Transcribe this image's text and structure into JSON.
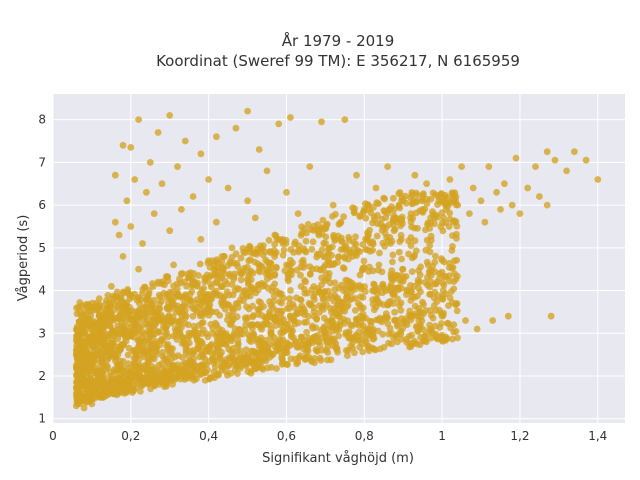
{
  "chart_data": {
    "type": "scatter",
    "title_lines": [
      "År 1979 - 2019",
      "Koordinat (Sweref 99 TM): E 356217, N 6165959"
    ],
    "xlabel": "Signifikant våghöjd (m)",
    "ylabel": "Vågperiod (s)",
    "xlim": [
      0,
      1.47
    ],
    "ylim": [
      0.9,
      8.6
    ],
    "x_ticks": [
      0,
      0.2,
      0.4,
      0.6,
      0.8,
      1,
      1.2,
      1.4
    ],
    "x_tick_labels": [
      "0",
      "0,2",
      "0,4",
      "0,6",
      "0,8",
      "1",
      "1,2",
      "1,4"
    ],
    "y_ticks": [
      1,
      2,
      3,
      4,
      5,
      6,
      7,
      8
    ],
    "y_tick_labels": [
      "1",
      "2",
      "3",
      "4",
      "5",
      "6",
      "7",
      "8"
    ],
    "grid": true,
    "marker_color": "#d4a321",
    "plot_background": "#e8e8f1",
    "points": [
      [
        0.06,
        1.3
      ],
      [
        0.07,
        1.45
      ],
      [
        0.08,
        1.25
      ],
      [
        0.09,
        1.4
      ],
      [
        0.1,
        1.35
      ],
      [
        0.1,
        2.7
      ],
      [
        0.11,
        2.2
      ],
      [
        0.12,
        1.5
      ],
      [
        0.12,
        3.2
      ],
      [
        0.13,
        2.9
      ],
      [
        0.14,
        1.6
      ],
      [
        0.14,
        3.6
      ],
      [
        0.15,
        2.5
      ],
      [
        0.15,
        4.1
      ],
      [
        0.16,
        1.75
      ],
      [
        0.16,
        5.6
      ],
      [
        0.16,
        6.7
      ],
      [
        0.17,
        3.4
      ],
      [
        0.17,
        5.3
      ],
      [
        0.18,
        2.1
      ],
      [
        0.18,
        4.8
      ],
      [
        0.18,
        7.4
      ],
      [
        0.19,
        1.9
      ],
      [
        0.19,
        6.1
      ],
      [
        0.2,
        3.9
      ],
      [
        0.2,
        5.5
      ],
      [
        0.2,
        7.35
      ],
      [
        0.21,
        2.3
      ],
      [
        0.21,
        6.6
      ],
      [
        0.22,
        4.5
      ],
      [
        0.22,
        8.0
      ],
      [
        0.23,
        2.6
      ],
      [
        0.23,
        5.1
      ],
      [
        0.24,
        1.95
      ],
      [
        0.24,
        6.3
      ],
      [
        0.25,
        3.7
      ],
      [
        0.25,
        7.0
      ],
      [
        0.26,
        2.4
      ],
      [
        0.26,
        5.8
      ],
      [
        0.27,
        4.2
      ],
      [
        0.27,
        7.7
      ],
      [
        0.28,
        2.05
      ],
      [
        0.28,
        6.5
      ],
      [
        0.29,
        3.1
      ],
      [
        0.3,
        5.4
      ],
      [
        0.3,
        8.1
      ],
      [
        0.31,
        2.2
      ],
      [
        0.31,
        4.6
      ],
      [
        0.32,
        6.9
      ],
      [
        0.33,
        3.3
      ],
      [
        0.33,
        5.9
      ],
      [
        0.34,
        2.3
      ],
      [
        0.34,
        7.5
      ],
      [
        0.35,
        4.3
      ],
      [
        0.36,
        2.6
      ],
      [
        0.36,
        6.2
      ],
      [
        0.37,
        3.5
      ],
      [
        0.38,
        5.2
      ],
      [
        0.38,
        7.2
      ],
      [
        0.39,
        2.4
      ],
      [
        0.4,
        4.7
      ],
      [
        0.4,
        6.6
      ],
      [
        0.41,
        3.0
      ],
      [
        0.42,
        5.6
      ],
      [
        0.42,
        7.6
      ],
      [
        0.43,
        2.5
      ],
      [
        0.44,
        4.4
      ],
      [
        0.45,
        6.4
      ],
      [
        0.46,
        3.4
      ],
      [
        0.46,
        5.0
      ],
      [
        0.47,
        7.8
      ],
      [
        0.48,
        2.6
      ],
      [
        0.49,
        4.9
      ],
      [
        0.5,
        6.1
      ],
      [
        0.5,
        8.2
      ],
      [
        0.51,
        3.2
      ],
      [
        0.52,
        5.7
      ],
      [
        0.53,
        2.7
      ],
      [
        0.53,
        7.3
      ],
      [
        0.54,
        4.1
      ],
      [
        0.55,
        6.8
      ],
      [
        0.56,
        3.0
      ],
      [
        0.57,
        5.3
      ],
      [
        0.58,
        7.9
      ],
      [
        0.58,
        2.8
      ],
      [
        0.6,
        4.6
      ],
      [
        0.6,
        6.3
      ],
      [
        0.61,
        8.05
      ],
      [
        0.62,
        3.3
      ],
      [
        0.63,
        5.8
      ],
      [
        0.64,
        2.9
      ],
      [
        0.65,
        4.9
      ],
      [
        0.66,
        6.9
      ],
      [
        0.67,
        3.6
      ],
      [
        0.68,
        5.4
      ],
      [
        0.69,
        7.95
      ],
      [
        0.7,
        2.95
      ],
      [
        0.71,
        4.4
      ],
      [
        0.72,
        6.0
      ],
      [
        0.73,
        3.2
      ],
      [
        0.74,
        5.6
      ],
      [
        0.75,
        8.0
      ],
      [
        0.76,
        3.0
      ],
      [
        0.77,
        4.8
      ],
      [
        0.78,
        6.7
      ],
      [
        0.79,
        3.4
      ],
      [
        0.8,
        5.9
      ],
      [
        0.81,
        3.1
      ],
      [
        0.82,
        5.1
      ],
      [
        0.83,
        6.4
      ],
      [
        0.84,
        3.3
      ],
      [
        0.85,
        5.5
      ],
      [
        0.86,
        6.9
      ],
      [
        0.87,
        3.0
      ],
      [
        0.88,
        5.7
      ],
      [
        0.89,
        4.9
      ],
      [
        0.9,
        6.1
      ],
      [
        0.91,
        3.2
      ],
      [
        0.92,
        5.8
      ],
      [
        0.93,
        6.7
      ],
      [
        0.94,
        3.3
      ],
      [
        0.95,
        5.9
      ],
      [
        0.96,
        6.5
      ],
      [
        0.97,
        3.1
      ],
      [
        0.98,
        5.7
      ],
      [
        0.99,
        6.2
      ],
      [
        1.0,
        3.4
      ],
      [
        1.01,
        5.9
      ],
      [
        1.02,
        6.6
      ],
      [
        1.03,
        3.2
      ],
      [
        1.04,
        6.0
      ],
      [
        1.05,
        6.9
      ],
      [
        1.06,
        3.3
      ],
      [
        1.07,
        5.8
      ],
      [
        1.08,
        6.4
      ],
      [
        1.09,
        3.1
      ],
      [
        1.1,
        6.1
      ],
      [
        1.11,
        5.6
      ],
      [
        1.12,
        6.9
      ],
      [
        1.13,
        3.3
      ],
      [
        1.14,
        6.3
      ],
      [
        1.15,
        5.9
      ],
      [
        1.16,
        6.5
      ],
      [
        1.17,
        3.4
      ],
      [
        1.18,
        6.0
      ],
      [
        1.19,
        7.1
      ],
      [
        1.2,
        5.8
      ],
      [
        1.22,
        6.4
      ],
      [
        1.24,
        6.9
      ],
      [
        1.25,
        6.2
      ],
      [
        1.27,
        7.25
      ],
      [
        1.27,
        6.0
      ],
      [
        1.28,
        3.4
      ],
      [
        1.29,
        7.05
      ],
      [
        1.32,
        6.8
      ],
      [
        1.34,
        7.25
      ],
      [
        1.37,
        7.05
      ],
      [
        1.4,
        6.6
      ]
    ]
  }
}
